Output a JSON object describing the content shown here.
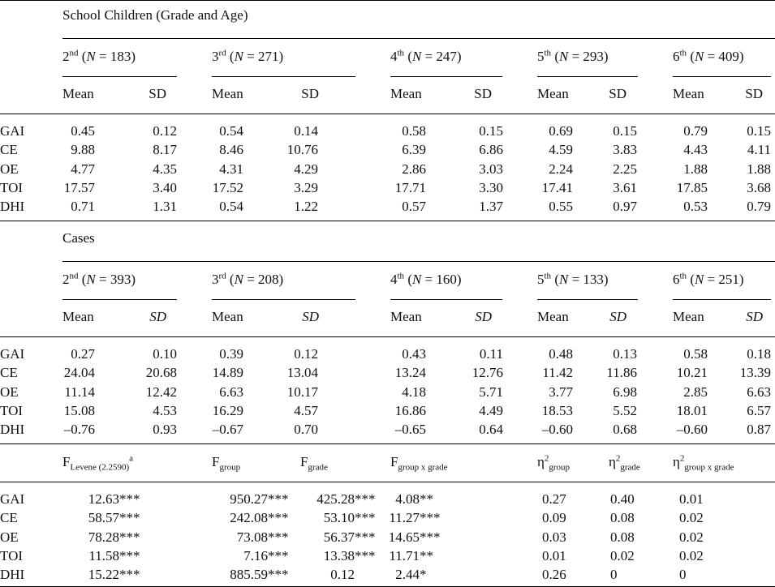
{
  "sections": [
    {
      "title": "School Children (Grade and Age)",
      "groups": [
        [
          {
            "text": "2"
          },
          {
            "sup": "nd"
          },
          {
            "text": " ("
          },
          {
            "i": "N"
          },
          {
            "text": " = 183)"
          }
        ],
        [
          {
            "text": "3"
          },
          {
            "sup": "rd"
          },
          {
            "text": " ("
          },
          {
            "i": "N"
          },
          {
            "text": " = 271)"
          }
        ],
        [
          {
            "text": "4"
          },
          {
            "sup": "th"
          },
          {
            "text": " ("
          },
          {
            "i": "N"
          },
          {
            "text": " = 247)"
          }
        ],
        [
          {
            "text": "5"
          },
          {
            "sup": "th"
          },
          {
            "text": " ("
          },
          {
            "i": "N"
          },
          {
            "text": " = 293)"
          }
        ],
        [
          {
            "text": "6"
          },
          {
            "sup": "th"
          },
          {
            "text": " ("
          },
          {
            "i": "N"
          },
          {
            "text": " = 409)"
          }
        ]
      ],
      "stat_headers": [
        [
          {
            "text": "Mean"
          }
        ],
        [
          {
            "text": "SD"
          }
        ]
      ],
      "rows": [
        {
          "label": "GAI",
          "values": [
            "0.45",
            "0.12",
            "0.54",
            "0.14",
            "0.58",
            "0.15",
            "0.69",
            "0.15",
            "0.79",
            "0.15"
          ]
        },
        {
          "label": "CE",
          "values": [
            "9.88",
            "8.17",
            "8.46",
            "10.76",
            "6.39",
            "6.86",
            "4.59",
            "3.83",
            "4.43",
            "4.11"
          ]
        },
        {
          "label": "OE",
          "values": [
            "4.77",
            "4.35",
            "4.31",
            "4.29",
            "2.86",
            "3.03",
            "2.24",
            "2.25",
            "1.88",
            "1.88"
          ]
        },
        {
          "label": "TOI",
          "values": [
            "17.57",
            "3.40",
            "17.52",
            "3.29",
            "17.71",
            "3.30",
            "17.41",
            "3.61",
            "17.85",
            "3.68"
          ]
        },
        {
          "label": "DHI",
          "values": [
            "0.71",
            "1.31",
            "0.54",
            "1.22",
            "0.57",
            "1.37",
            "0.55",
            "0.97",
            "0.53",
            "0.79"
          ]
        }
      ]
    },
    {
      "title": "Cases",
      "groups": [
        [
          {
            "text": "2"
          },
          {
            "sup": "nd"
          },
          {
            "text": " ("
          },
          {
            "i": "N"
          },
          {
            "text": " = 393)"
          }
        ],
        [
          {
            "text": "3"
          },
          {
            "sup": "rd"
          },
          {
            "text": " ("
          },
          {
            "i": "N"
          },
          {
            "text": " = 208)"
          }
        ],
        [
          {
            "text": "4"
          },
          {
            "sup": "th"
          },
          {
            "text": " ("
          },
          {
            "i": "N"
          },
          {
            "text": " = 160)"
          }
        ],
        [
          {
            "text": "5"
          },
          {
            "sup": "th"
          },
          {
            "text": " ("
          },
          {
            "i": "N"
          },
          {
            "text": " = 133)"
          }
        ],
        [
          {
            "text": "6"
          },
          {
            "sup": "th"
          },
          {
            "text": " ("
          },
          {
            "i": "N"
          },
          {
            "text": " = 251)"
          }
        ]
      ],
      "stat_headers": [
        [
          {
            "text": "Mean"
          }
        ],
        [
          {
            "i": "SD"
          }
        ]
      ],
      "rows": [
        {
          "label": "GAI",
          "values": [
            "0.27",
            "0.10",
            "0.39",
            "0.12",
            "0.43",
            "0.11",
            "0.48",
            "0.13",
            "0.58",
            "0.18"
          ]
        },
        {
          "label": "CE",
          "values": [
            "24.04",
            "20.68",
            "14.89",
            "13.04",
            "13.24",
            "12.76",
            "11.42",
            "11.86",
            "10.21",
            "13.39"
          ]
        },
        {
          "label": "OE",
          "values": [
            "11.14",
            "12.42",
            "6.63",
            "10.17",
            "4.18",
            "5.71",
            "3.77",
            "6.98",
            "2.85",
            "6.63"
          ]
        },
        {
          "label": "TOI",
          "values": [
            "15.08",
            "4.53",
            "16.29",
            "4.57",
            "16.86",
            "4.49",
            "18.53",
            "5.52",
            "18.01",
            "6.57"
          ]
        },
        {
          "label": "DHI",
          "values": [
            "–0.76",
            "0.93",
            "–0.67",
            "0.70",
            "–0.65",
            "0.64",
            "–0.60",
            "0.68",
            "–0.60",
            "0.87"
          ]
        }
      ]
    }
  ],
  "tests": {
    "headers": [
      [
        {
          "text": "F"
        },
        {
          "sub": "Levene (2.2590)"
        },
        {
          "sup": "a"
        }
      ],
      [
        {
          "text": "F"
        },
        {
          "sub": "group"
        }
      ],
      [
        {
          "text": "F"
        },
        {
          "sub": "grade"
        }
      ],
      [
        {
          "text": "F"
        },
        {
          "sub": "group x grade"
        }
      ],
      [
        {
          "text": "η"
        },
        {
          "sup": "2"
        },
        {
          "sub": "group"
        }
      ],
      [
        {
          "text": "η"
        },
        {
          "sup": "2"
        },
        {
          "sub": "grade"
        }
      ],
      [
        {
          "text": "η"
        },
        {
          "sup": "2"
        },
        {
          "sub": "group x grade"
        }
      ]
    ],
    "rows": [
      {
        "label": "GAI",
        "f": [
          {
            "v": "12.63",
            "sig": "***"
          },
          {
            "v": "950.27",
            "sig": "***"
          },
          {
            "v": "425.28",
            "sig": "***"
          },
          {
            "v": "4.08",
            "sig": "**"
          }
        ],
        "eta": [
          "0.27",
          "0.40",
          "0.01"
        ]
      },
      {
        "label": "CE",
        "f": [
          {
            "v": "58.57",
            "sig": "***"
          },
          {
            "v": "242.08",
            "sig": "***"
          },
          {
            "v": "53.10",
            "sig": "***"
          },
          {
            "v": "11.27",
            "sig": "***"
          }
        ],
        "eta": [
          "0.09",
          "0.08",
          "0.02"
        ]
      },
      {
        "label": "OE",
        "f": [
          {
            "v": "78.28",
            "sig": "***"
          },
          {
            "v": "73.08",
            "sig": "***"
          },
          {
            "v": "56.37",
            "sig": "***"
          },
          {
            "v": "14.65",
            "sig": "***"
          }
        ],
        "eta": [
          "0.03",
          "0.08",
          "0.02"
        ]
      },
      {
        "label": "TOI",
        "f": [
          {
            "v": "11.58",
            "sig": "***"
          },
          {
            "v": "7.16",
            "sig": "***"
          },
          {
            "v": "13.38",
            "sig": "***"
          },
          {
            "v": "11.71",
            "sig": "**"
          }
        ],
        "eta": [
          "0.01",
          "0.02",
          "0.02"
        ]
      },
      {
        "label": "DHI",
        "f": [
          {
            "v": "15.22",
            "sig": "***"
          },
          {
            "v": "885.59",
            "sig": "***"
          },
          {
            "v": "0.12"
          },
          {
            "v": "2.44",
            "sig": "*"
          }
        ],
        "eta": [
          "0.26",
          "0",
          "0"
        ]
      }
    ]
  }
}
